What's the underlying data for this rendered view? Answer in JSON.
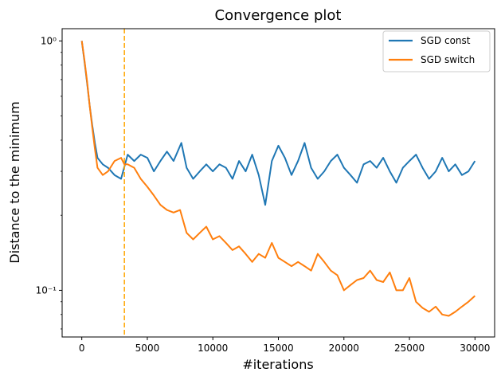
{
  "chart_data": {
    "type": "line",
    "title": "Convergence plot",
    "xlabel": "#iterations",
    "ylabel": "Distance to the minimum",
    "xlim": [
      -1500,
      31500
    ],
    "ylim": [
      0.065,
      1.12
    ],
    "yscale": "log",
    "x_ticks": [
      0,
      5000,
      10000,
      15000,
      20000,
      25000,
      30000
    ],
    "x_tick_labels": [
      "0",
      "5000",
      "10000",
      "15000",
      "20000",
      "25000",
      "30000"
    ],
    "y_ticks": [
      0.1,
      1
    ],
    "y_tick_labels": [
      "10⁻¹",
      "10⁰"
    ],
    "grid": false,
    "legend_position": "top-right",
    "vertical_line": {
      "x": 3250,
      "color": "#ffa500",
      "style": "dashed"
    },
    "series": [
      {
        "name": "SGD const",
        "color": "#1f77b4",
        "x": [
          0,
          200,
          400,
          600,
          800,
          1000,
          1200,
          1600,
          2000,
          2500,
          3000,
          3500,
          4000,
          4500,
          5000,
          5500,
          6000,
          6500,
          7000,
          7600,
          8000,
          8500,
          9000,
          9500,
          10000,
          10500,
          11000,
          11500,
          12000,
          12500,
          13000,
          13500,
          14000,
          14500,
          15000,
          15500,
          16000,
          16500,
          17000,
          17500,
          18000,
          18500,
          19000,
          19500,
          20000,
          20500,
          21000,
          21500,
          22000,
          22500,
          23000,
          23500,
          24000,
          24500,
          25000,
          25500,
          26000,
          26500,
          27000,
          27500,
          28000,
          28500,
          29000,
          29500,
          30000
        ],
        "y": [
          1.0,
          0.83,
          0.68,
          0.55,
          0.46,
          0.39,
          0.34,
          0.32,
          0.31,
          0.29,
          0.28,
          0.35,
          0.33,
          0.35,
          0.34,
          0.3,
          0.33,
          0.36,
          0.33,
          0.39,
          0.31,
          0.28,
          0.3,
          0.32,
          0.3,
          0.32,
          0.31,
          0.28,
          0.33,
          0.3,
          0.35,
          0.29,
          0.22,
          0.33,
          0.38,
          0.34,
          0.29,
          0.33,
          0.39,
          0.31,
          0.28,
          0.3,
          0.33,
          0.35,
          0.31,
          0.29,
          0.27,
          0.32,
          0.33,
          0.31,
          0.34,
          0.3,
          0.27,
          0.31,
          0.33,
          0.35,
          0.31,
          0.28,
          0.3,
          0.34,
          0.3,
          0.32,
          0.29,
          0.3,
          0.33
        ]
      },
      {
        "name": "SGD switch",
        "color": "#ff7f0e",
        "x": [
          0,
          200,
          400,
          600,
          800,
          1000,
          1200,
          1600,
          2000,
          2500,
          3000,
          3250,
          3500,
          4000,
          4500,
          5000,
          5500,
          6000,
          6500,
          7000,
          7500,
          8000,
          8500,
          9000,
          9500,
          10000,
          10500,
          11000,
          11500,
          12000,
          12500,
          13000,
          13500,
          14000,
          14500,
          15000,
          15500,
          16000,
          16500,
          17000,
          17500,
          18000,
          18500,
          19000,
          19500,
          20000,
          20500,
          21000,
          21500,
          22000,
          22500,
          23000,
          23500,
          24000,
          24500,
          25000,
          25500,
          26000,
          26500,
          27000,
          27500,
          28000,
          28500,
          29000,
          29500,
          30000
        ],
        "y": [
          1.0,
          0.84,
          0.69,
          0.55,
          0.45,
          0.37,
          0.31,
          0.29,
          0.3,
          0.33,
          0.34,
          0.32,
          0.32,
          0.31,
          0.28,
          0.26,
          0.24,
          0.22,
          0.21,
          0.205,
          0.21,
          0.17,
          0.16,
          0.17,
          0.18,
          0.16,
          0.165,
          0.155,
          0.145,
          0.15,
          0.14,
          0.13,
          0.14,
          0.135,
          0.155,
          0.135,
          0.13,
          0.125,
          0.13,
          0.125,
          0.12,
          0.14,
          0.13,
          0.12,
          0.115,
          0.1,
          0.105,
          0.11,
          0.112,
          0.12,
          0.11,
          0.108,
          0.118,
          0.1,
          0.1,
          0.112,
          0.09,
          0.085,
          0.082,
          0.086,
          0.08,
          0.079,
          0.082,
          0.086,
          0.09,
          0.095
        ]
      }
    ]
  }
}
